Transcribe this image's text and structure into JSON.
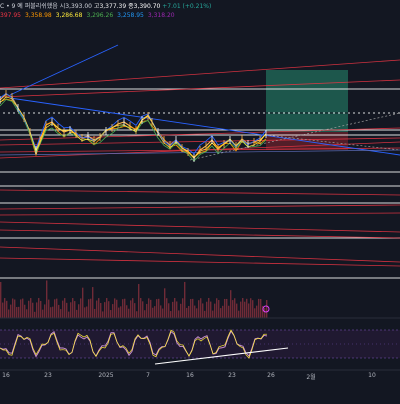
{
  "legend": {
    "title": "C • 9 예 퍼블리쉬했음",
    "o_label": "시",
    "o_value": "3,393.00",
    "h_label": "고",
    "h_value": "3,377.39",
    "l_label": "종",
    "l_value": "3,390.70",
    "change": "+7.01 (+0.21%)",
    "ma_values": [
      {
        "text": "397.95",
        "color": "#f23645"
      },
      {
        "text": "3,358.98",
        "color": "#ff9800"
      },
      {
        "text": "3,286.68",
        "color": "#ffeb3b"
      },
      {
        "text": "3,296.26",
        "color": "#4caf50"
      },
      {
        "text": "3,258.95",
        "color": "#2196f3"
      },
      {
        "text": "3,318.20",
        "color": "#9c27b0"
      }
    ]
  },
  "x_axis": {
    "ticks": [
      "16",
      "23",
      "2025",
      "7",
      "16",
      "23",
      "26",
      "2월",
      "10"
    ]
  },
  "rsi_marker_icon": "circle-marker-icon",
  "colors": {
    "background": "#131722",
    "candles": "#ffb74d",
    "ma_blue": "#2962ff",
    "trend_red": "#f23645",
    "pos_green": "#26a69a",
    "white_line": "#ffffff"
  }
}
